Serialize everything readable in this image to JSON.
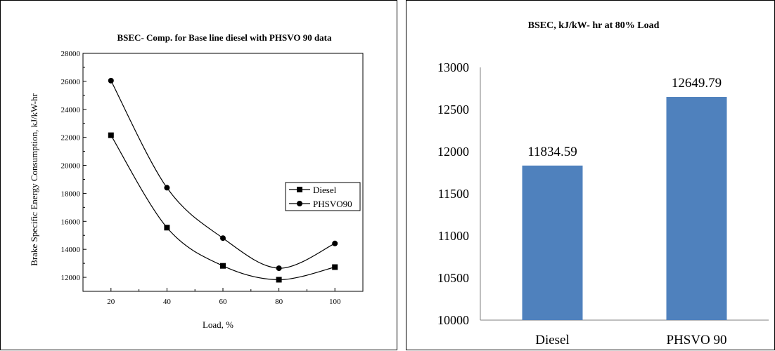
{
  "chart_data": [
    {
      "type": "line",
      "title": "BSEC- Comp. for Base line diesel with PHSVO 90 data",
      "xlabel": "Load, %",
      "ylabel": "Brake Specific Energy Consumption, kJ/kW-hr",
      "x": [
        20,
        40,
        60,
        80,
        100
      ],
      "xticks": [
        "20",
        "40",
        "60",
        "80",
        "100"
      ],
      "xlim": [
        10,
        110
      ],
      "ylim": [
        11000,
        28000
      ],
      "yticks": [
        "12000",
        "14000",
        "16000",
        "18000",
        "20000",
        "22000",
        "24000",
        "26000",
        "28000"
      ],
      "grid": false,
      "legend_position": "right",
      "series": [
        {
          "name": "Diesel",
          "marker": "square",
          "values": [
            22150,
            15550,
            12820,
            11830,
            12730
          ]
        },
        {
          "name": "PHSVO90",
          "marker": "circle",
          "values": [
            26050,
            18400,
            14800,
            12650,
            14420
          ]
        }
      ]
    },
    {
      "type": "bar",
      "title": "BSEC, kJ/kW- hr at 80% Load",
      "categories": [
        "Diesel",
        "PHSVO 90"
      ],
      "values": [
        11834.59,
        12649.79
      ],
      "data_labels": [
        "11834.59",
        "12649.79"
      ],
      "ylim": [
        10000,
        13000
      ],
      "yticks": [
        "10000",
        "10500",
        "11000",
        "11500",
        "12000",
        "12500",
        "13000"
      ],
      "grid": false,
      "colors": {
        "bar": "#4f81bd"
      }
    }
  ]
}
